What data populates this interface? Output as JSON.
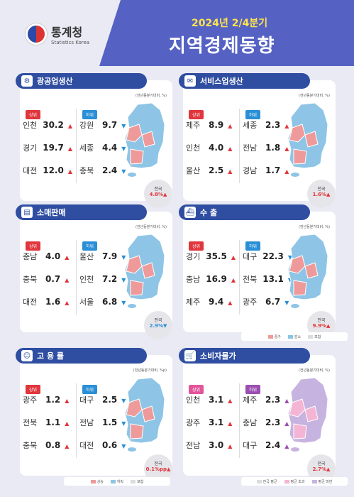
{
  "header": {
    "org_kr": "통계청",
    "org_en": "Statistics Korea",
    "period": "2024년 2/4분기",
    "title": "지역경제동향"
  },
  "colors": {
    "increase": "#ef9a9a",
    "decrease": "#8ec5e6",
    "flat": "#dcdcdc",
    "avg": "#dcdcdc",
    "above": "#f4b4d4",
    "below": "#c7b3e0"
  },
  "panels": {
    "mining": {
      "title": "광공업생산",
      "unit": "(전년동분기대비, %)",
      "top_label": "상위",
      "bottom_label": "하위",
      "top": [
        {
          "region": "인천",
          "value": "30.2"
        },
        {
          "region": "경기",
          "value": "19.7"
        },
        {
          "region": "대전",
          "value": "12.0"
        }
      ],
      "bottom": [
        {
          "region": "강원",
          "value": "9.7"
        },
        {
          "region": "세종",
          "value": "4.4"
        },
        {
          "region": "충북",
          "value": "2.4"
        }
      ],
      "national_label": "전국",
      "national_value": "4.8%"
    },
    "service": {
      "title": "서비스업생산",
      "unit": "(전년동분기대비, %)",
      "top_label": "상위",
      "bottom_label": "하위",
      "top": [
        {
          "region": "제주",
          "value": "8.9"
        },
        {
          "region": "인천",
          "value": "4.0"
        },
        {
          "region": "울산",
          "value": "2.5"
        }
      ],
      "bottom": [
        {
          "region": "세종",
          "value": "2.3"
        },
        {
          "region": "전남",
          "value": "1.8"
        },
        {
          "region": "경남",
          "value": "1.7"
        }
      ],
      "national_label": "전국",
      "national_value": "1.6%"
    },
    "retail": {
      "title": "소매판매",
      "unit": "(전년동분기대비, %)",
      "top_label": "상위",
      "bottom_label": "하위",
      "top": [
        {
          "region": "충남",
          "value": "4.0"
        },
        {
          "region": "충북",
          "value": "0.7"
        },
        {
          "region": "대전",
          "value": "1.6"
        }
      ],
      "bottom": [
        {
          "region": "울산",
          "value": "7.9"
        },
        {
          "region": "인천",
          "value": "7.2"
        },
        {
          "region": "서울",
          "value": "6.8"
        }
      ],
      "national_label": "전국",
      "national_value": "2.9%"
    },
    "export": {
      "title": "수 출",
      "unit": "(전년동분기대비, %)",
      "top_label": "상위",
      "bottom_label": "하위",
      "top": [
        {
          "region": "경기",
          "value": "35.5"
        },
        {
          "region": "충남",
          "value": "16.9"
        },
        {
          "region": "제주",
          "value": "9.4"
        }
      ],
      "bottom": [
        {
          "region": "대구",
          "value": "22.3"
        },
        {
          "region": "전북",
          "value": "13.1"
        },
        {
          "region": "광주",
          "value": "6.7"
        }
      ],
      "national_label": "전국",
      "national_value": "9.9%"
    },
    "employment": {
      "title": "고 용 률",
      "unit": "(전년동분기대비, %p)",
      "top_label": "상위",
      "bottom_label": "하위",
      "top": [
        {
          "region": "광주",
          "value": "1.2"
        },
        {
          "region": "전북",
          "value": "1.1"
        },
        {
          "region": "충북",
          "value": "0.8"
        }
      ],
      "bottom": [
        {
          "region": "대구",
          "value": "2.5"
        },
        {
          "region": "전남",
          "value": "1.5"
        },
        {
          "region": "대전",
          "value": "0.6"
        }
      ],
      "national_label": "전국",
      "national_value": "0.1%p"
    },
    "cpi": {
      "title": "소비자물가",
      "unit": "(전년동분기대비, %)",
      "top_label": "상위",
      "bottom_label": "하위",
      "top": [
        {
          "region": "인천",
          "value": "3.1"
        },
        {
          "region": "광주",
          "value": "3.1"
        },
        {
          "region": "전남",
          "value": "3.0"
        }
      ],
      "bottom": [
        {
          "region": "제주",
          "value": "2.3"
        },
        {
          "region": "충남",
          "value": "2.3"
        },
        {
          "region": "대구",
          "value": "2.4"
        }
      ],
      "national_label": "전국",
      "national_value": "2.7%"
    }
  },
  "legends": {
    "change": [
      "증가",
      "감소",
      "보합"
    ],
    "employment": [
      "상승",
      "하락",
      "보합"
    ],
    "cpi": [
      "전국 평균",
      "평균 초과",
      "평균 미만"
    ]
  }
}
